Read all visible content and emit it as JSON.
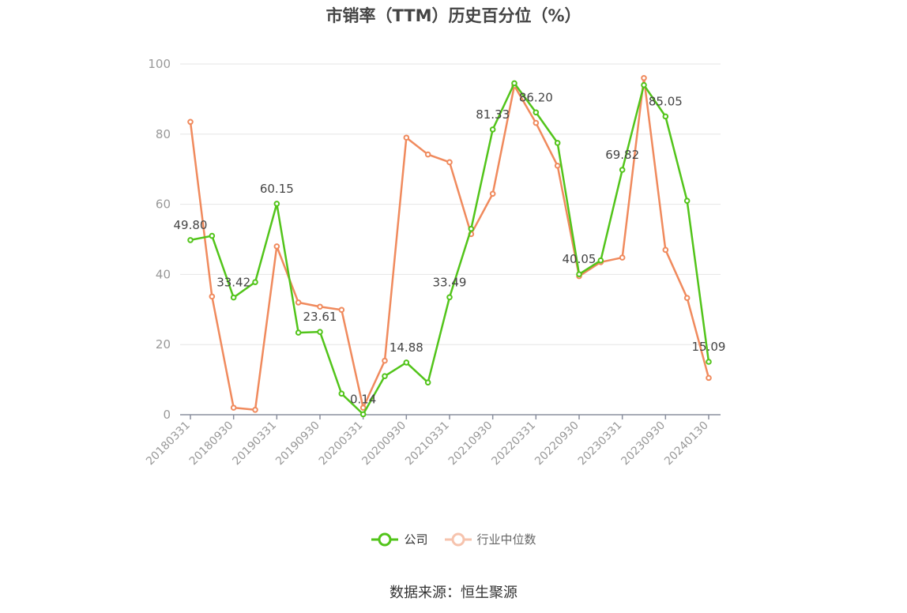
{
  "title": "市销率（TTM）历史百分位（%）",
  "source": "数据来源：恒生聚源",
  "chart_data": {
    "type": "line",
    "title": "市销率（TTM）历史百分位（%）",
    "xlabel": "",
    "ylabel": "",
    "ylim": [
      0,
      100
    ],
    "yticks": [
      0,
      20,
      40,
      60,
      80,
      100
    ],
    "grid": true,
    "legend_position": "bottom",
    "x": [
      "20180331",
      "20180630",
      "20180930",
      "20181231",
      "20190331",
      "20190630",
      "20190930",
      "20191231",
      "20200331",
      "20200630",
      "20200930",
      "20201231",
      "20210331",
      "20210630",
      "20210930",
      "20211231",
      "20220331",
      "20220630",
      "20220930",
      "20221231",
      "20230331",
      "20230630",
      "20230930",
      "20231231",
      "20240130"
    ],
    "x_tick_labels": [
      "20180331",
      "20180930",
      "20190331",
      "20190930",
      "20200331",
      "20200930",
      "20210331",
      "20210930",
      "20220331",
      "20220930",
      "20230331",
      "20230930",
      "20240130"
    ],
    "series": [
      {
        "name": "公司",
        "color": "#52c41a",
        "values": [
          49.8,
          51.0,
          33.42,
          37.8,
          60.15,
          23.4,
          23.61,
          6.0,
          0.14,
          11.0,
          14.88,
          9.2,
          33.49,
          53.0,
          81.33,
          94.5,
          86.2,
          77.5,
          40.05,
          44.0,
          69.82,
          94.0,
          85.05,
          61.0,
          15.09
        ],
        "labels": {
          "0": "49.80",
          "2": "33.42",
          "4": "60.15",
          "6": "23.61",
          "8": "0.14",
          "10": "14.88",
          "12": "33.49",
          "14": "81.33",
          "16": "86.20",
          "18": "40.05",
          "20": "69.82",
          "22": "85.05",
          "24": "15.09"
        }
      },
      {
        "name": "行业中位数",
        "color": "#f08a5d",
        "values": [
          83.5,
          33.7,
          2.0,
          1.4,
          48.0,
          32.0,
          30.8,
          29.9,
          2.0,
          15.4,
          79.0,
          74.2,
          72.0,
          51.5,
          63.0,
          93.8,
          83.2,
          71.0,
          39.5,
          43.5,
          44.8,
          96.0,
          47.0,
          33.3,
          10.5
        ]
      }
    ]
  }
}
